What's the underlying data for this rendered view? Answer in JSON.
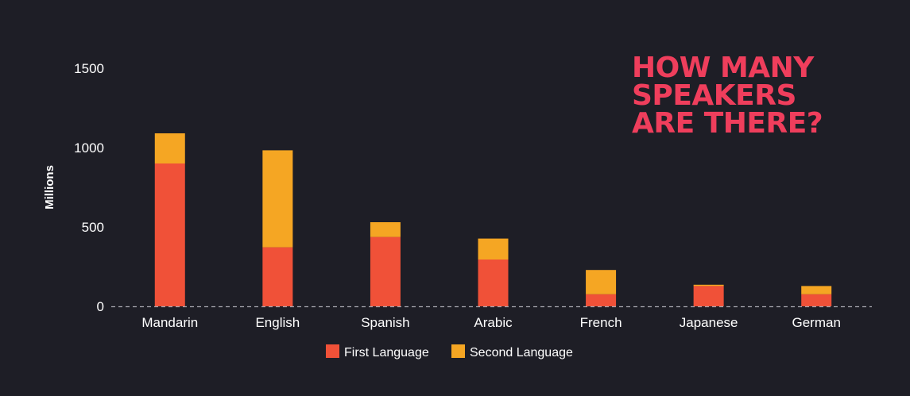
{
  "chart_data": {
    "type": "bar",
    "stacked": true,
    "title": [
      "HOW MANY",
      "SPEAKERS",
      "ARE THERE?"
    ],
    "ylabel": "Millions",
    "xlabel": "",
    "ylim": [
      0,
      1500
    ],
    "yticks": [
      0,
      500,
      1000,
      1500
    ],
    "categories": [
      "Mandarin",
      "English",
      "Spanish",
      "Arabic",
      "French",
      "Japanese",
      "German"
    ],
    "series": [
      {
        "name": "First Language",
        "color": "#f05138",
        "values": [
          900,
          372,
          437,
          295,
          76,
          128,
          76
        ]
      },
      {
        "name": "Second Language",
        "color": "#f5a623",
        "values": [
          190,
          611,
          93,
          132,
          153,
          8,
          52
        ]
      }
    ],
    "legend_position": "bottom-center",
    "grid": false,
    "baseline_style": "dashed"
  }
}
